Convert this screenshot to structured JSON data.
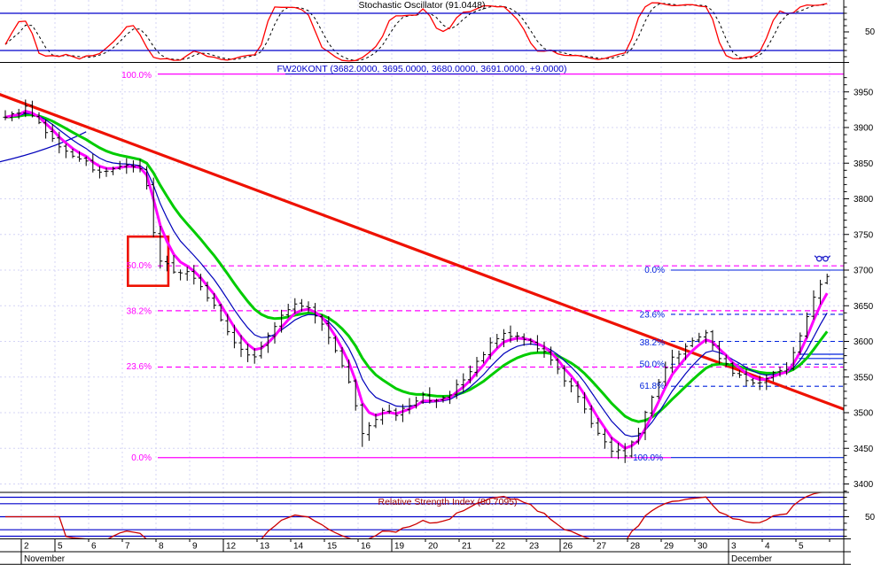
{
  "window": {
    "background": "#ffffff"
  },
  "colors": {
    "grid": "#d4d4f6",
    "level_blue": "#0000cc",
    "fib_magenta": "#ff00ff",
    "fib_blue": "#0022dd",
    "ma_fast_magenta": "#ff00ff",
    "ma_mid_blue": "#0000bb",
    "ma_slow_green": "#00cc00",
    "bars_black": "#000000",
    "stoch_red": "#ff0000",
    "stoch_signal_black": "#000000",
    "rsi_red": "#cc0000",
    "trendline_red": "#ee1100",
    "box_red": "#ee1100",
    "axis_black": "#000000",
    "title_price_blue": "#0000cc",
    "title_rsi_maroon": "#990000"
  },
  "panels": {
    "stochastic": {
      "title": "Stochastic Oscillator (91.0448)",
      "indicator": "Stochastic Oscillator",
      "value": 91.0448,
      "axis_label": "50",
      "upper_level": 80,
      "lower_level": 20
    },
    "price": {
      "title": "FW20KONT (3682.0000, 3695.0000, 3680.0000, 3691.0000, +9.0000)",
      "symbol": "FW20KONT",
      "open": 3682.0,
      "high": 3695.0,
      "low": 3680.0,
      "close": 3691.0,
      "change": "+9.0000"
    },
    "rsi": {
      "title": "Relative Strength Index (80.7095)",
      "indicator": "Relative Strength Index",
      "value": 80.7095,
      "axis_label": "50",
      "levels": [
        80,
        70,
        50,
        30,
        20
      ]
    }
  },
  "chart_data": {
    "type": "ohlc-bar",
    "title": "FW20KONT (3682.0000, 3695.0000, 3680.0000, 3691.0000, +9.0000)",
    "ylim": [
      3388,
      3975
    ],
    "y_ticks": [
      3950,
      3900,
      3850,
      3800,
      3750,
      3700,
      3650,
      3600,
      3550,
      3500,
      3450,
      3400
    ],
    "grid": true,
    "x_axis": {
      "day_labels": [
        "2",
        "5",
        "6",
        "7",
        "8",
        "9",
        "12",
        "13",
        "14",
        "15",
        "16",
        "19",
        "20",
        "21",
        "22",
        "23",
        "26",
        "27",
        "28",
        "29",
        "30",
        "3",
        "4",
        "5"
      ],
      "week_start_indices": [
        1,
        6,
        11,
        16,
        21
      ],
      "months": [
        {
          "label": "November",
          "day_index": 0
        },
        {
          "label": "December",
          "day_index": 21
        }
      ],
      "bars_per_day": 5,
      "lead_in_bars": 3
    },
    "price_path": [
      [
        0,
        3912
      ],
      [
        2,
        3922
      ],
      [
        3,
        3928
      ],
      [
        5,
        3905
      ],
      [
        6,
        3895
      ],
      [
        8,
        3872
      ],
      [
        9,
        3868
      ],
      [
        11,
        3855
      ],
      [
        12,
        3850
      ],
      [
        14,
        3835
      ],
      [
        16,
        3842
      ],
      [
        18,
        3846
      ],
      [
        20,
        3845
      ],
      [
        21,
        3818
      ],
      [
        22,
        3752
      ],
      [
        23,
        3715
      ],
      [
        25,
        3700
      ],
      [
        27,
        3696
      ],
      [
        29,
        3678
      ],
      [
        31,
        3648
      ],
      [
        33,
        3612
      ],
      [
        35,
        3588
      ],
      [
        37,
        3580
      ],
      [
        39,
        3608
      ],
      [
        41,
        3635
      ],
      [
        43,
        3655
      ],
      [
        45,
        3645
      ],
      [
        47,
        3622
      ],
      [
        49,
        3588
      ],
      [
        51,
        3545
      ],
      [
        52,
        3508
      ],
      [
        53,
        3468
      ],
      [
        54,
        3482
      ],
      [
        56,
        3503
      ],
      [
        58,
        3495
      ],
      [
        60,
        3512
      ],
      [
        62,
        3524
      ],
      [
        64,
        3514
      ],
      [
        66,
        3528
      ],
      [
        68,
        3546
      ],
      [
        70,
        3572
      ],
      [
        72,
        3596
      ],
      [
        74,
        3608
      ],
      [
        76,
        3610
      ],
      [
        78,
        3599
      ],
      [
        80,
        3583
      ],
      [
        82,
        3558
      ],
      [
        84,
        3538
      ],
      [
        86,
        3505
      ],
      [
        88,
        3468
      ],
      [
        90,
        3448
      ],
      [
        92,
        3442
      ],
      [
        94,
        3472
      ],
      [
        96,
        3522
      ],
      [
        98,
        3566
      ],
      [
        100,
        3584
      ],
      [
        102,
        3602
      ],
      [
        104,
        3612
      ],
      [
        106,
        3578
      ],
      [
        108,
        3556
      ],
      [
        110,
        3546
      ],
      [
        112,
        3544
      ],
      [
        114,
        3553
      ],
      [
        116,
        3562
      ],
      [
        117,
        3582
      ],
      [
        118,
        3606
      ],
      [
        119,
        3636
      ],
      [
        120,
        3662
      ],
      [
        121,
        3680
      ],
      [
        122,
        3691
      ]
    ],
    "last_bar": {
      "open": 3682,
      "high": 3695,
      "low": 3680,
      "close": 3691
    },
    "key_lows": [
      {
        "bar": 53,
        "price": 3452
      },
      {
        "bar": 91,
        "price": 3437
      }
    ],
    "moving_averages": [
      {
        "name": "fast",
        "style": "thick",
        "color_key": "ma_fast_magenta"
      },
      {
        "name": "medium",
        "style": "thin",
        "color_key": "ma_mid_blue"
      },
      {
        "name": "slow",
        "style": "thick",
        "color_key": "ma_slow_green"
      }
    ],
    "fibonacci_down": {
      "color": "magenta",
      "high": 3975,
      "low": 3437,
      "levels": [
        {
          "label": "100.0%",
          "price": 3975,
          "style": "solid"
        },
        {
          "label": "50.0%",
          "price": 3706,
          "style": "dashed"
        },
        {
          "label": "38.2%",
          "price": 3643,
          "style": "dashed"
        },
        {
          "label": "23.6%",
          "price": 3564,
          "style": "dashed"
        },
        {
          "label": "0.0%",
          "price": 3437,
          "style": "solid"
        }
      ]
    },
    "fibonacci_up": {
      "color": "blue",
      "high": 3700,
      "low": 3437,
      "levels": [
        {
          "label": "0.0%",
          "price": 3700,
          "style": "solid"
        },
        {
          "label": "23.6%",
          "price": 3638,
          "style": "dashed"
        },
        {
          "label": "38.2%",
          "price": 3600,
          "style": "dashed"
        },
        {
          "label": "50.0%",
          "price": 3568,
          "style": "dashed"
        },
        {
          "label": "61.8%",
          "price": 3537,
          "style": "dashed"
        },
        {
          "label": "100.0%",
          "price": 3437,
          "style": "solid"
        }
      ]
    },
    "trendline": {
      "bar_start": -1,
      "price_start": 3947,
      "bar_end": 125,
      "price_end": 3503
    },
    "support_line": {
      "bar_start": -0.8,
      "price_start": 3852,
      "bar_end": 12,
      "price_end": 3894
    },
    "highlight_box": {
      "bar_from": 18.2,
      "bar_to": 24.2,
      "price_from": 3678,
      "price_to": 3747
    },
    "double_line": {
      "prices": [
        3582,
        3576
      ],
      "bar_from": 117.8
    },
    "glasses_marker": {
      "bar": 121.3,
      "price": 3716
    }
  }
}
